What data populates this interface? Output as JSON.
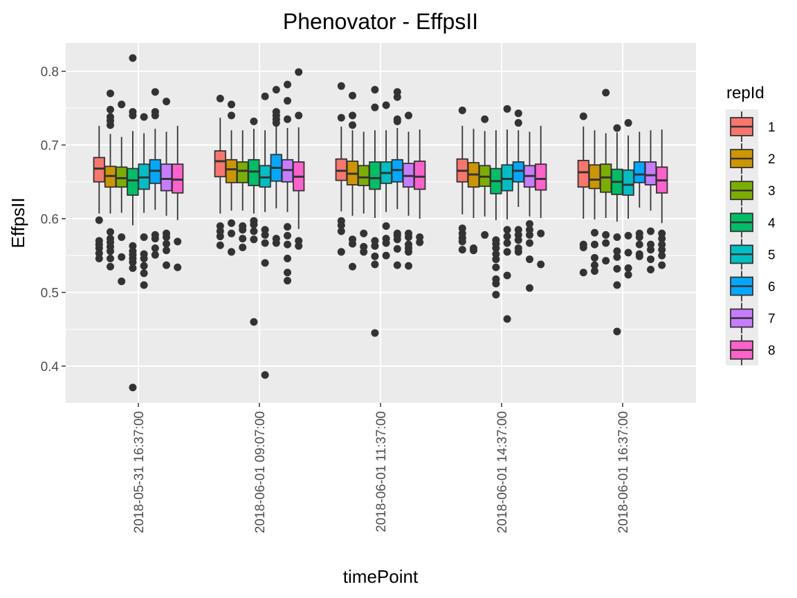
{
  "chart_data": {
    "type": "boxplot",
    "title": "Phenovator - EffpsII",
    "xlabel": "timePoint",
    "ylabel": "EffpsII",
    "ylim": [
      0.35,
      0.84
    ],
    "y_ticks": [
      0.4,
      0.5,
      0.6,
      0.7,
      0.8
    ],
    "y_tick_labels": [
      "0.4",
      "0.5",
      "0.6",
      "0.7",
      "0.8"
    ],
    "grid": true,
    "legend": {
      "title": "repId",
      "position": "right"
    },
    "categories": [
      "2018-05-31 16:37:00",
      "2018-06-01 09:07:00",
      "2018-06-01 11:37:00",
      "2018-06-01 14:37:00",
      "2018-06-01 16:37:00"
    ],
    "series": [
      {
        "name": "1",
        "color": "#F8766D",
        "boxes": [
          {
            "min": 0.607,
            "q1": 0.65,
            "median": 0.668,
            "q3": 0.683,
            "max": 0.726,
            "outliers": [
              0.598,
              0.57,
              0.565,
              0.56,
              0.553,
              0.546
            ]
          },
          {
            "min": 0.607,
            "q1": 0.657,
            "median": 0.678,
            "q3": 0.692,
            "max": 0.737,
            "outliers": [
              0.763,
              0.59,
              0.583,
              0.576,
              0.564
            ]
          },
          {
            "min": 0.61,
            "q1": 0.652,
            "median": 0.665,
            "q3": 0.681,
            "max": 0.725,
            "outliers": [
              0.78,
              0.737,
              0.597,
              0.591,
              0.583,
              0.555
            ]
          },
          {
            "min": 0.606,
            "q1": 0.65,
            "median": 0.665,
            "q3": 0.681,
            "max": 0.726,
            "outliers": [
              0.747,
              0.587,
              0.58,
              0.574,
              0.569,
              0.558
            ]
          },
          {
            "min": 0.6,
            "q1": 0.643,
            "median": 0.663,
            "q3": 0.679,
            "max": 0.725,
            "outliers": [
              0.739,
              0.565,
              0.561,
              0.527
            ]
          }
        ]
      },
      {
        "name": "2",
        "color": "#CD9600",
        "boxes": [
          {
            "min": 0.607,
            "q1": 0.643,
            "median": 0.658,
            "q3": 0.671,
            "max": 0.715,
            "outliers": [
              0.77,
              0.748,
              0.738,
              0.733,
              0.727,
              0.582,
              0.573,
              0.568,
              0.562,
              0.556,
              0.546,
              0.535
            ]
          },
          {
            "min": 0.611,
            "q1": 0.649,
            "median": 0.667,
            "q3": 0.68,
            "max": 0.72,
            "outliers": [
              0.755,
              0.74,
              0.594,
              0.58,
              0.555
            ]
          },
          {
            "min": 0.604,
            "q1": 0.646,
            "median": 0.661,
            "q3": 0.678,
            "max": 0.72,
            "outliers": [
              0.767,
              0.74,
              0.727,
              0.572,
              0.566,
              0.535
            ]
          },
          {
            "min": 0.601,
            "q1": 0.643,
            "median": 0.66,
            "q3": 0.676,
            "max": 0.722,
            "outliers": [
              0.56,
              0.557
            ]
          },
          {
            "min": 0.599,
            "q1": 0.641,
            "median": 0.653,
            "q3": 0.673,
            "max": 0.72,
            "outliers": [
              0.581,
              0.565,
              0.547,
              0.537,
              0.529
            ]
          }
        ]
      },
      {
        "name": "3",
        "color": "#7CAE00",
        "boxes": [
          {
            "min": 0.608,
            "q1": 0.643,
            "median": 0.655,
            "q3": 0.67,
            "max": 0.711,
            "outliers": [
              0.755,
              0.575,
              0.548,
              0.515
            ]
          },
          {
            "min": 0.611,
            "q1": 0.649,
            "median": 0.665,
            "q3": 0.677,
            "max": 0.72,
            "outliers": [
              0.59,
              0.585,
              0.573,
              0.561
            ]
          },
          {
            "min": 0.607,
            "q1": 0.645,
            "median": 0.656,
            "q3": 0.672,
            "max": 0.718,
            "outliers": [
              0.58,
              0.562,
              0.555
            ]
          },
          {
            "min": 0.603,
            "q1": 0.644,
            "median": 0.657,
            "q3": 0.672,
            "max": 0.719,
            "outliers": [
              0.735,
              0.578
            ]
          },
          {
            "min": 0.601,
            "q1": 0.636,
            "median": 0.656,
            "q3": 0.674,
            "max": 0.716,
            "outliers": [
              0.771,
              0.578,
              0.567,
              0.543
            ]
          }
        ]
      },
      {
        "name": "4",
        "color": "#00BE67",
        "boxes": [
          {
            "min": 0.591,
            "q1": 0.632,
            "median": 0.652,
            "q3": 0.668,
            "max": 0.719,
            "outliers": [
              0.818,
              0.745,
              0.74,
              0.563,
              0.556,
              0.551,
              0.546,
              0.541,
              0.533,
              0.371
            ]
          },
          {
            "min": 0.607,
            "q1": 0.645,
            "median": 0.664,
            "q3": 0.68,
            "max": 0.722,
            "outliers": [
              0.732,
              0.597,
              0.592,
              0.583,
              0.572,
              0.46
            ]
          },
          {
            "min": 0.601,
            "q1": 0.64,
            "median": 0.655,
            "q3": 0.677,
            "max": 0.72,
            "outliers": [
              0.775,
              0.751,
              0.57,
              0.563,
              0.549,
              0.538,
              0.445
            ]
          },
          {
            "min": 0.598,
            "q1": 0.634,
            "median": 0.651,
            "q3": 0.668,
            "max": 0.72,
            "outliers": [
              0.571,
              0.566,
              0.56,
              0.552,
              0.545,
              0.534,
              0.518,
              0.512,
              0.497
            ]
          },
          {
            "min": 0.596,
            "q1": 0.633,
            "median": 0.65,
            "q3": 0.667,
            "max": 0.717,
            "outliers": [
              0.723,
              0.575,
              0.556,
              0.548,
              0.532,
              0.51,
              0.447
            ]
          }
        ]
      },
      {
        "name": "5",
        "color": "#00BFC4",
        "boxes": [
          {
            "min": 0.608,
            "q1": 0.64,
            "median": 0.656,
            "q3": 0.674,
            "max": 0.716,
            "outliers": [
              0.738,
              0.575,
              0.552,
              0.546,
              0.536,
              0.526,
              0.51
            ]
          },
          {
            "min": 0.609,
            "q1": 0.643,
            "median": 0.656,
            "q3": 0.672,
            "max": 0.72,
            "outliers": [
              0.766,
              0.585,
              0.578,
              0.567,
              0.54,
              0.388
            ]
          },
          {
            "min": 0.609,
            "q1": 0.648,
            "median": 0.662,
            "q3": 0.677,
            "max": 0.72,
            "outliers": [
              0.754,
              0.59,
              0.573,
              0.567,
              0.55
            ]
          },
          {
            "min": 0.599,
            "q1": 0.638,
            "median": 0.654,
            "q3": 0.673,
            "max": 0.721,
            "outliers": [
              0.749,
              0.585,
              0.576,
              0.567,
              0.555,
              0.523,
              0.464
            ]
          },
          {
            "min": 0.6,
            "q1": 0.632,
            "median": 0.646,
            "q3": 0.666,
            "max": 0.713,
            "outliers": [
              0.73,
              0.577,
              0.554,
              0.533,
              0.524
            ]
          }
        ]
      },
      {
        "name": "6",
        "color": "#00A9FF",
        "boxes": [
          {
            "min": 0.612,
            "q1": 0.648,
            "median": 0.665,
            "q3": 0.68,
            "max": 0.722,
            "outliers": [
              0.772,
              0.745,
              0.74,
              0.578,
              0.573,
              0.56,
              0.551
            ]
          },
          {
            "min": 0.614,
            "q1": 0.651,
            "median": 0.669,
            "q3": 0.687,
            "max": 0.73,
            "outliers": [
              0.775,
              0.745,
              0.74,
              0.735,
              0.73,
              0.573,
              0.567
            ]
          },
          {
            "min": 0.613,
            "q1": 0.65,
            "median": 0.666,
            "q3": 0.68,
            "max": 0.723,
            "outliers": [
              0.772,
              0.765,
              0.735,
              0.732,
              0.58,
              0.577,
              0.572,
              0.559,
              0.537
            ]
          },
          {
            "min": 0.616,
            "q1": 0.65,
            "median": 0.665,
            "q3": 0.677,
            "max": 0.72,
            "outliers": [
              0.743,
              0.73,
              0.585,
              0.578,
              0.571,
              0.56,
              0.555
            ]
          },
          {
            "min": 0.615,
            "q1": 0.649,
            "median": 0.66,
            "q3": 0.677,
            "max": 0.718,
            "outliers": [
              0.58,
              0.575,
              0.565,
              0.552,
              0.549
            ]
          }
        ]
      },
      {
        "name": "7",
        "color": "#C77CFF",
        "boxes": [
          {
            "min": 0.604,
            "q1": 0.638,
            "median": 0.654,
            "q3": 0.674,
            "max": 0.718,
            "outliers": [
              0.759,
              0.58,
              0.575,
              0.566,
              0.557,
              0.537
            ]
          },
          {
            "min": 0.609,
            "q1": 0.65,
            "median": 0.666,
            "q3": 0.68,
            "max": 0.723,
            "outliers": [
              0.782,
              0.76,
              0.735,
              0.589,
              0.577,
              0.565,
              0.546,
              0.527,
              0.516
            ]
          },
          {
            "min": 0.604,
            "q1": 0.643,
            "median": 0.658,
            "q3": 0.675,
            "max": 0.718,
            "outliers": [
              0.74,
              0.58,
              0.575,
              0.565,
              0.56,
              0.555,
              0.536
            ]
          },
          {
            "min": 0.603,
            "q1": 0.643,
            "median": 0.658,
            "q3": 0.672,
            "max": 0.718,
            "outliers": [
              0.593,
              0.585,
              0.578,
              0.567,
              0.545,
              0.506
            ]
          },
          {
            "min": 0.611,
            "q1": 0.646,
            "median": 0.659,
            "q3": 0.677,
            "max": 0.72,
            "outliers": [
              0.583,
              0.565,
              0.558,
              0.545,
              0.531
            ]
          }
        ]
      },
      {
        "name": "8",
        "color": "#FF61CC",
        "boxes": [
          {
            "min": 0.598,
            "q1": 0.635,
            "median": 0.653,
            "q3": 0.674,
            "max": 0.726,
            "outliers": [
              0.569,
              0.534
            ]
          },
          {
            "min": 0.586,
            "q1": 0.638,
            "median": 0.657,
            "q3": 0.677,
            "max": 0.724,
            "outliers": [
              0.799,
              0.74,
              0.57,
              0.563
            ]
          },
          {
            "min": 0.6,
            "q1": 0.64,
            "median": 0.657,
            "q3": 0.678,
            "max": 0.721,
            "outliers": [
              0.575,
              0.568
            ]
          },
          {
            "min": 0.601,
            "q1": 0.639,
            "median": 0.654,
            "q3": 0.674,
            "max": 0.726,
            "outliers": [
              0.58,
              0.538
            ]
          },
          {
            "min": 0.594,
            "q1": 0.635,
            "median": 0.652,
            "q3": 0.67,
            "max": 0.721,
            "outliers": [
              0.58,
              0.573,
              0.565,
              0.558,
              0.55,
              0.537
            ]
          }
        ]
      }
    ]
  }
}
